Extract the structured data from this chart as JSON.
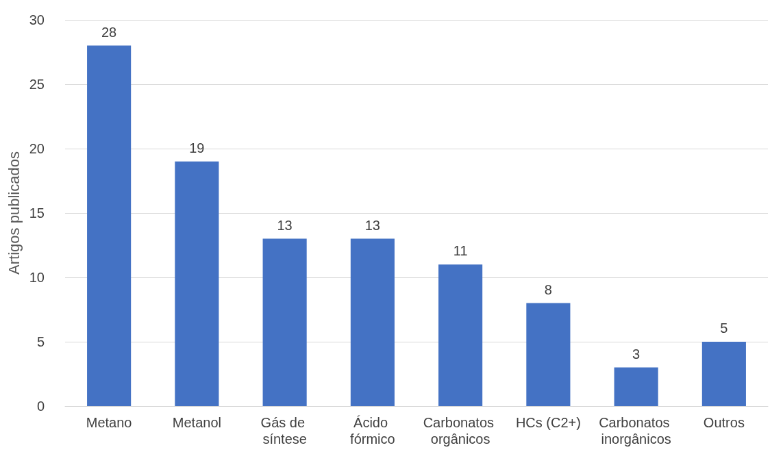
{
  "chart_data": {
    "type": "bar",
    "ylabel": "Artigos publicados",
    "categories": [
      "Metano",
      "Metanol",
      "Gás de síntese",
      "Ácido fórmico",
      "Carbonatos orgânicos",
      "HCs (C2+)",
      "Carbonatos inorgânicos",
      "Outros"
    ],
    "values": [
      28,
      19,
      13,
      13,
      11,
      8,
      3,
      5
    ],
    "color": "#4472c4",
    "ylim": [
      0,
      30
    ],
    "yticks": [
      0,
      5,
      10,
      15,
      20,
      25,
      30
    ],
    "grid": "y",
    "data_labels": true
  }
}
